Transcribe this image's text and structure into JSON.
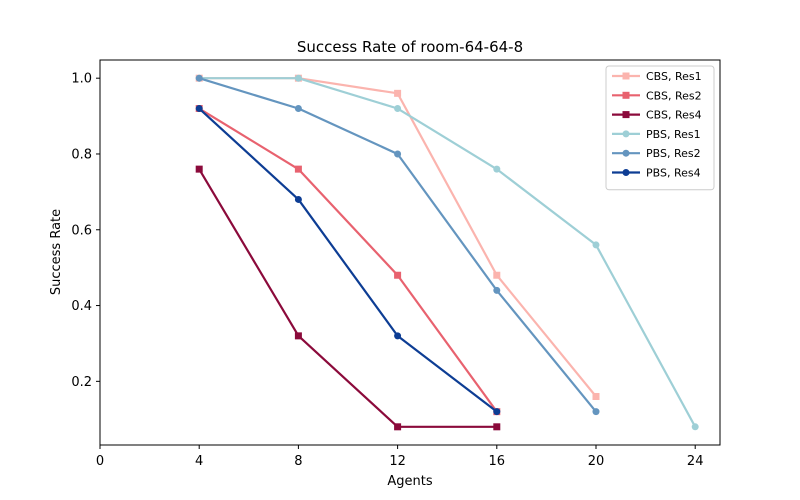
{
  "chart_data": {
    "type": "line",
    "title": "Success Rate of room-64-64-8",
    "xlabel": "Agents",
    "ylabel": "Success Rate",
    "xlim": [
      0,
      25
    ],
    "ylim": [
      0.032,
      1.048
    ],
    "xticks": [
      0,
      4,
      8,
      12,
      16,
      20,
      24
    ],
    "yticks": [
      0.2,
      0.4,
      0.6,
      0.8,
      1.0
    ],
    "xtick_labels": [
      "0",
      "4",
      "8",
      "12",
      "16",
      "20",
      "24"
    ],
    "ytick_labels": [
      "0.2",
      "0.4",
      "0.6",
      "0.8",
      "1.0"
    ],
    "grid": false,
    "legend_position": "top-right",
    "series": [
      {
        "name": "CBS, Res1",
        "color": "#FBB4AE",
        "marker": "square",
        "x": [
          4,
          8,
          12,
          16,
          20
        ],
        "y": [
          1.0,
          1.0,
          0.96,
          0.48,
          0.16
        ]
      },
      {
        "name": "CBS, Res2",
        "color": "#E8626F",
        "marker": "square",
        "x": [
          4,
          8,
          12,
          16
        ],
        "y": [
          0.92,
          0.76,
          0.48,
          0.12
        ]
      },
      {
        "name": "CBS, Res4",
        "color": "#8B0A3B",
        "marker": "square",
        "x": [
          4,
          8,
          12,
          16
        ],
        "y": [
          0.76,
          0.32,
          0.08,
          0.08
        ]
      },
      {
        "name": "PBS, Res1",
        "color": "#9ECFD6",
        "marker": "circle",
        "x": [
          4,
          8,
          12,
          16,
          20,
          24
        ],
        "y": [
          1.0,
          1.0,
          0.92,
          0.76,
          0.56,
          0.08
        ]
      },
      {
        "name": "PBS, Res2",
        "color": "#6495BF",
        "marker": "circle",
        "x": [
          4,
          8,
          12,
          16,
          20
        ],
        "y": [
          1.0,
          0.92,
          0.8,
          0.44,
          0.12
        ]
      },
      {
        "name": "PBS, Res4",
        "color": "#0D3D94",
        "marker": "circle",
        "x": [
          4,
          8,
          12,
          16
        ],
        "y": [
          0.92,
          0.68,
          0.32,
          0.12
        ]
      }
    ]
  }
}
